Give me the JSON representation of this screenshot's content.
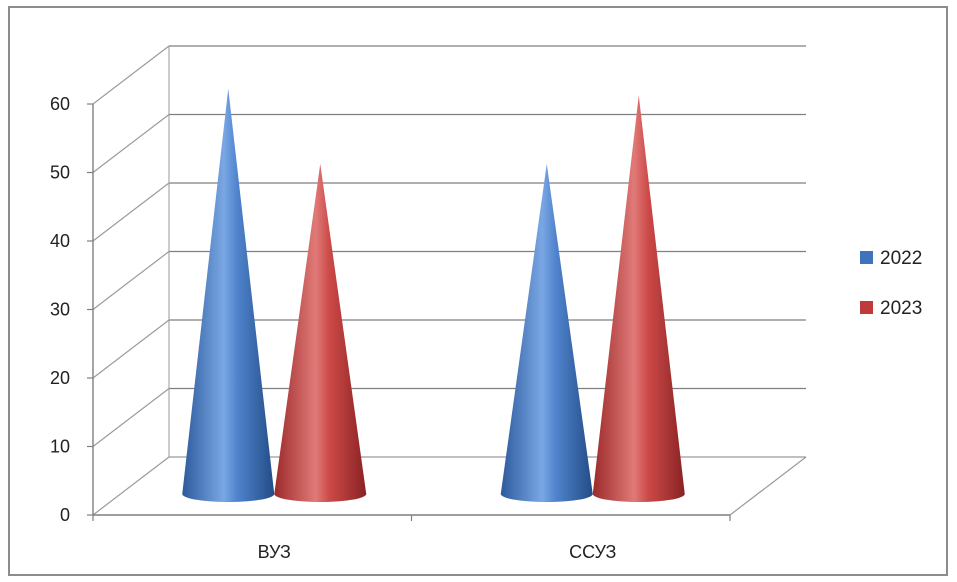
{
  "chart_data": {
    "type": "bar",
    "shape": "cone-3d",
    "categories": [
      "ВУЗ",
      "ССУЗ"
    ],
    "series": [
      {
        "name": "2022",
        "values": [
          57,
          46
        ],
        "color": "#3f73bb"
      },
      {
        "name": "2023",
        "values": [
          46,
          56
        ],
        "color": "#c0393b"
      }
    ],
    "ylim": [
      0,
      60
    ],
    "yticks": [
      0,
      10,
      20,
      30,
      40,
      50,
      60
    ],
    "grid": true,
    "legend_position": "right"
  }
}
